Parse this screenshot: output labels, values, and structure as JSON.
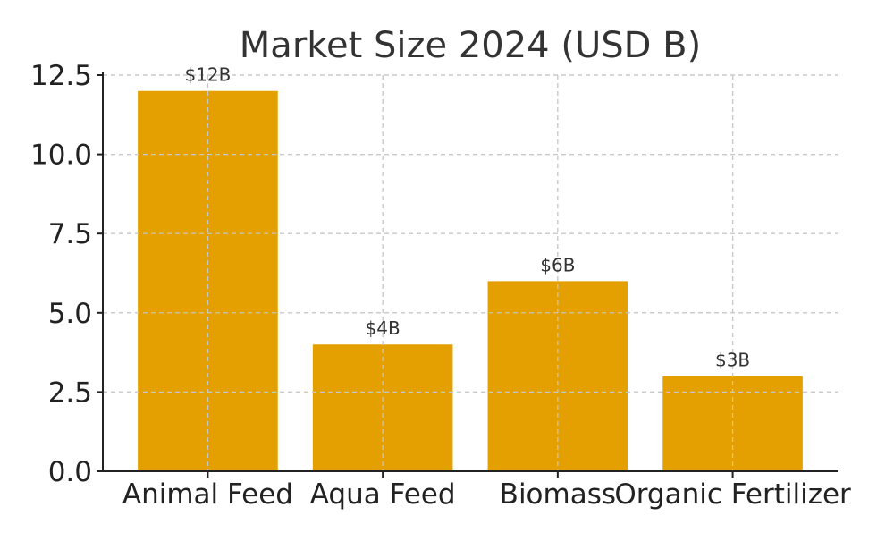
{
  "chart_data": {
    "type": "bar",
    "title": "Market Size 2024 (USD B)",
    "xlabel": "",
    "ylabel": "",
    "categories": [
      "Animal Feed",
      "Aqua Feed",
      "Biomass",
      "Organic Fertilizer"
    ],
    "values": [
      12,
      4,
      6,
      3
    ],
    "data_labels": [
      "$12B",
      "$4B",
      "$6B",
      "$3B"
    ],
    "ylim": [
      0,
      12.5
    ],
    "yticks": [
      0.0,
      2.5,
      5.0,
      7.5,
      10.0,
      12.5
    ],
    "ytick_labels": [
      "0.0",
      "2.5",
      "5.0",
      "7.5",
      "10.0",
      "12.5"
    ],
    "grid": true,
    "bar_color": "#E3A000"
  }
}
